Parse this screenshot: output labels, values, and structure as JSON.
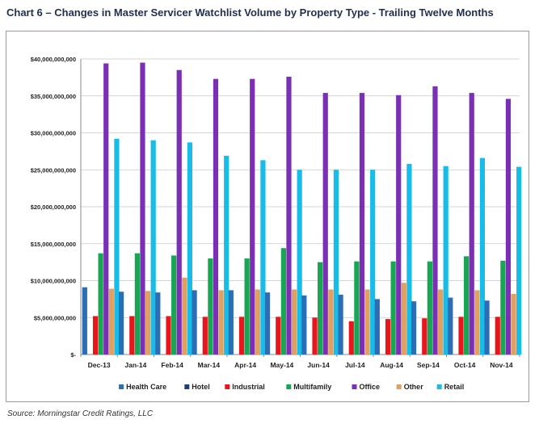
{
  "title": "Chart 6 – Changes in Master Servicer Watchlist Volume by Property Type - Trailing Twelve Months",
  "source": "Source: Morningstar Credit Ratings, LLC",
  "chart_data": {
    "type": "bar",
    "categories": [
      "Dec-13",
      "Jan-14",
      "Feb-14",
      "Mar-14",
      "Apr-14",
      "May-14",
      "Jun-14",
      "Jul-14",
      "Aug-14",
      "Sep-14",
      "Oct-14",
      "Nov-14"
    ],
    "ylim": [
      0,
      40000000
    ],
    "yticks": [
      0,
      5000000,
      10000000,
      15000000,
      20000000,
      25000000,
      30000000,
      35000000,
      40000000
    ],
    "ytick_labels": [
      "$-",
      "$5,000,000,000",
      "$10,000,000,000",
      "$15,000,000,000",
      "$20,000,000,000",
      "$25,000,000,000",
      "$30,000,000,000",
      "$35,000,000,000",
      "$40,000,000,000"
    ],
    "legend_position": "bottom",
    "grid": true,
    "series": [
      {
        "name": "Health Care",
        "color": "#2c6eb5",
        "values": [
          9100000,
          8500000,
          8400000,
          8700000,
          8700000,
          8400000,
          8000000,
          8100000,
          7500000,
          7200000,
          7700000,
          7300000
        ]
      },
      {
        "name": "Hotel",
        "color": "#1f3f7a",
        "values": [
          0,
          0,
          0,
          0,
          0,
          0,
          0,
          0,
          0,
          0,
          0,
          0
        ]
      },
      {
        "name": "Industrial",
        "color": "#e8161c",
        "values": [
          5200000,
          5200000,
          5200000,
          5100000,
          5100000,
          5100000,
          5000000,
          4500000,
          4800000,
          4900000,
          5100000,
          5100000
        ]
      },
      {
        "name": "Multifamily",
        "color": "#18a653",
        "values": [
          13700000,
          13700000,
          13400000,
          13000000,
          13000000,
          14400000,
          12500000,
          12600000,
          12600000,
          12600000,
          13300000,
          12700000
        ]
      },
      {
        "name": "Office",
        "color": "#7a2fb5",
        "values": [
          39400000,
          39500000,
          38500000,
          37300000,
          37300000,
          37600000,
          35400000,
          35400000,
          35100000,
          36300000,
          35400000,
          34600000
        ]
      },
      {
        "name": "Other",
        "color": "#e0a060",
        "values": [
          8900000,
          8600000,
          10400000,
          8700000,
          8800000,
          8800000,
          8800000,
          8800000,
          9700000,
          8800000,
          8700000,
          8200000
        ]
      },
      {
        "name": "Retail",
        "color": "#17bde8",
        "values": [
          29200000,
          29000000,
          28700000,
          26900000,
          26300000,
          25000000,
          25000000,
          25000000,
          25800000,
          25500000,
          26600000,
          25400000
        ]
      }
    ]
  }
}
